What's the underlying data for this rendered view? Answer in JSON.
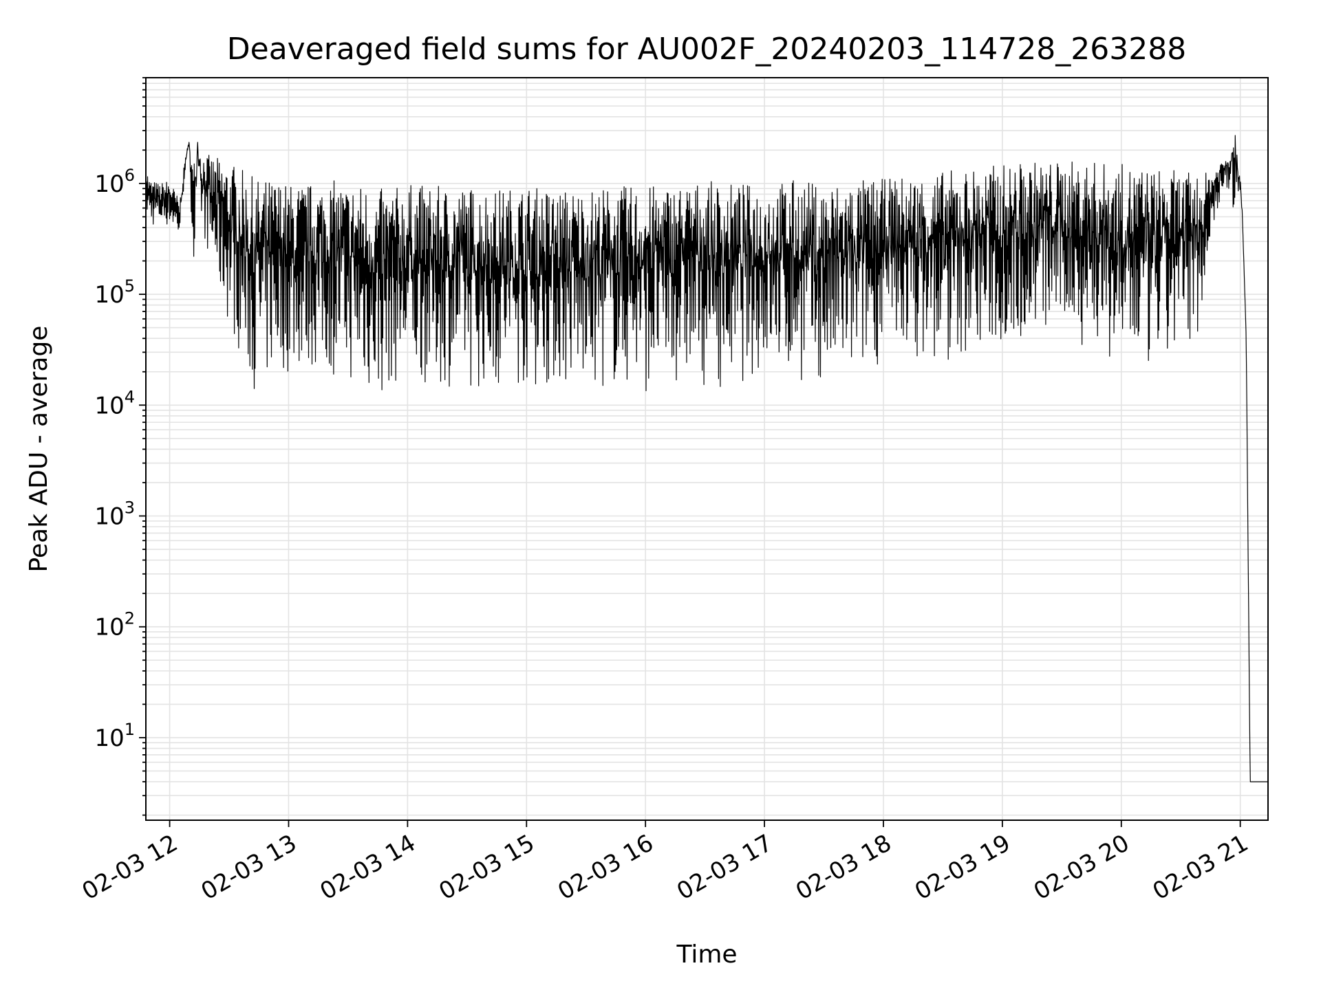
{
  "chart_data": {
    "type": "line",
    "title": "Deaveraged field sums for AU002F_20240203_114728_263288",
    "xlabel": "Time",
    "ylabel": "Peak ADU - average",
    "yscale": "log",
    "ylim": [
      1.8,
      9000000
    ],
    "xlim": [
      "2024-02-03 11:48",
      "2024-02-03 21:14"
    ],
    "grid": "major and minor, light gray",
    "line_color": "#000000",
    "x_tick_labels": [
      "02-03 12",
      "02-03 13",
      "02-03 14",
      "02-03 15",
      "02-03 16",
      "02-03 17",
      "02-03 18",
      "02-03 19",
      "02-03 20",
      "02-03 21"
    ],
    "y_tick_labels": [
      {
        "base": "10",
        "exp": "1"
      },
      {
        "base": "10",
        "exp": "2"
      },
      {
        "base": "10",
        "exp": "3"
      },
      {
        "base": "10",
        "exp": "4"
      },
      {
        "base": "10",
        "exp": "5"
      },
      {
        "base": "10",
        "exp": "6"
      }
    ],
    "series": [
      {
        "x": [
          "2024-02-03 11:48",
          "2024-02-03 11:50",
          "2024-02-03 11:55",
          "2024-02-03 12:00",
          "2024-02-03 12:05",
          "2024-02-03 12:08",
          "2024-02-03 12:10",
          "2024-02-03 12:12",
          "2024-02-03 12:14",
          "2024-02-03 12:16",
          "2024-02-03 12:20",
          "2024-02-03 12:25",
          "2024-02-03 12:30",
          "2024-02-03 12:35",
          "2024-02-03 12:40",
          "2024-02-03 12:45",
          "2024-02-03 12:50",
          "2024-02-03 12:55",
          "2024-02-03 13:00",
          "2024-02-03 13:10",
          "2024-02-03 13:20",
          "2024-02-03 13:30",
          "2024-02-03 13:40",
          "2024-02-03 13:45",
          "2024-02-03 13:50",
          "2024-02-03 14:00",
          "2024-02-03 14:15",
          "2024-02-03 14:30",
          "2024-02-03 14:45",
          "2024-02-03 15:00",
          "2024-02-03 15:15",
          "2024-02-03 15:30",
          "2024-02-03 15:45",
          "2024-02-03 16:00",
          "2024-02-03 16:15",
          "2024-02-03 16:30",
          "2024-02-03 16:45",
          "2024-02-03 17:00",
          "2024-02-03 17:15",
          "2024-02-03 17:30",
          "2024-02-03 17:45",
          "2024-02-03 18:00",
          "2024-02-03 18:15",
          "2024-02-03 18:30",
          "2024-02-03 18:45",
          "2024-02-03 19:00",
          "2024-02-03 19:15",
          "2024-02-03 19:30",
          "2024-02-03 19:45",
          "2024-02-03 20:00",
          "2024-02-03 20:15",
          "2024-02-03 20:30",
          "2024-02-03 20:40",
          "2024-02-03 20:45",
          "2024-02-03 20:50",
          "2024-02-03 20:55",
          "2024-02-03 20:57",
          "2024-02-03 21:00",
          "2024-02-03 21:01",
          "2024-02-03 21:02",
          "2024-02-03 21:03",
          "2024-02-03 21:05",
          "2024-02-03 21:14"
        ],
        "upper": [
          1500000,
          1100000,
          1000000,
          1100000,
          700000,
          1800000,
          2500000,
          1500000,
          3000000,
          2000000,
          1800000,
          1700000,
          1600000,
          1400000,
          1200000,
          1100000,
          1100000,
          1100000,
          1000000,
          1000000,
          1100000,
          1000000,
          1000000,
          900000,
          900000,
          1000000,
          950000,
          950000,
          900000,
          950000,
          900000,
          900000,
          950000,
          950000,
          1000000,
          1050000,
          1000000,
          1000000,
          1100000,
          1000000,
          1100000,
          1100000,
          1200000,
          1300000,
          1400000,
          1500000,
          1600000,
          1600000,
          1600000,
          1500000,
          1400000,
          1300000,
          1200000,
          1300000,
          1600000,
          2000000,
          4200000,
          1200000,
          600000,
          150000,
          40000,
          4,
          4
        ],
        "lower": [
          500000,
          400000,
          400000,
          400000,
          300000,
          1400000,
          2000000,
          100000,
          800000,
          400000,
          200000,
          90000,
          50000,
          30000,
          15000,
          12000,
          15000,
          20000,
          18000,
          20000,
          18000,
          16000,
          12000,
          9000,
          14000,
          15000,
          15000,
          14000,
          13000,
          14000,
          14000,
          13000,
          14000,
          13000,
          15000,
          15000,
          14000,
          20000,
          16000,
          14000,
          16000,
          25000,
          28000,
          20000,
          30000,
          30000,
          40000,
          45000,
          30000,
          20000,
          18000,
          25000,
          50000,
          300000,
          700000,
          900000,
          400000,
          800000,
          500000,
          150000,
          40000,
          4,
          4
        ]
      }
    ]
  }
}
